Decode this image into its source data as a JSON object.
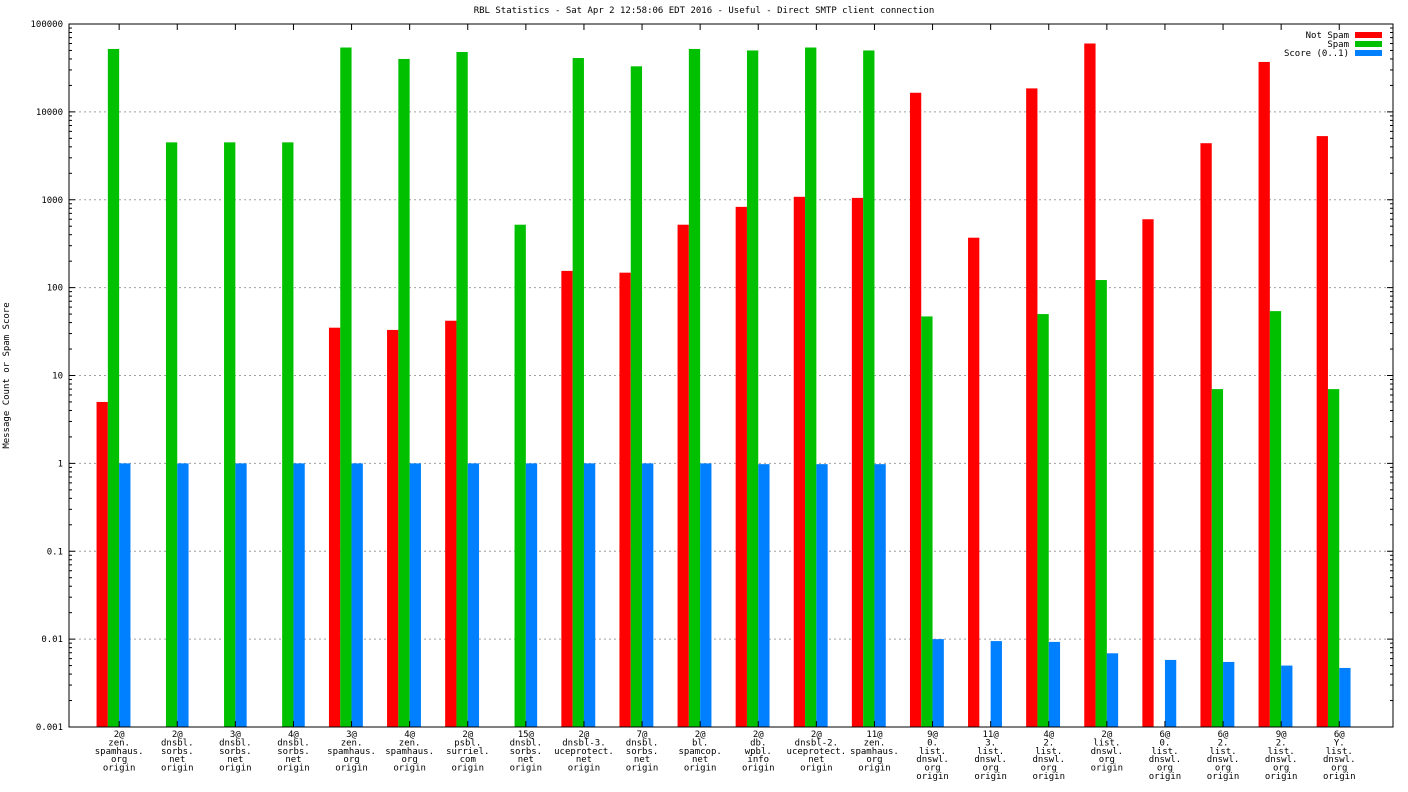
{
  "chart_data": {
    "type": "bar",
    "title": "RBL Statistics - Sat Apr  2 12:58:06 EDT 2016 - Useful - Direct SMTP client connection",
    "xlabel": "",
    "ylabel": "Message Count or Spam Score",
    "yscale": "log",
    "ylim": [
      0.001,
      100000
    ],
    "yticks": [
      "0.001",
      "0.01",
      "0.1",
      "1",
      "10",
      "100",
      "1000",
      "10000",
      "100000"
    ],
    "grid": true,
    "legend_position": "top-right",
    "categories": [
      [
        "2@",
        "zen.",
        "spamhaus.",
        "org",
        "origin"
      ],
      [
        "2@",
        "dnsbl.",
        "sorbs.",
        "net",
        "origin"
      ],
      [
        "3@",
        "dnsbl.",
        "sorbs.",
        "net",
        "origin"
      ],
      [
        "4@",
        "dnsbl.",
        "sorbs.",
        "net",
        "origin"
      ],
      [
        "3@",
        "zen.",
        "spamhaus.",
        "org",
        "origin"
      ],
      [
        "4@",
        "zen.",
        "spamhaus.",
        "org",
        "origin"
      ],
      [
        "2@",
        "psbl.",
        "surriel.",
        "com",
        "origin"
      ],
      [
        "15@",
        "dnsbl.",
        "sorbs.",
        "net",
        "origin"
      ],
      [
        "2@",
        "dnsbl-3.",
        "uceprotect.",
        "net",
        "origin"
      ],
      [
        "7@",
        "dnsbl.",
        "sorbs.",
        "net",
        "origin"
      ],
      [
        "2@",
        "bl.",
        "spamcop.",
        "net",
        "origin"
      ],
      [
        "2@",
        "db.",
        "wpbl.",
        "info",
        "origin"
      ],
      [
        "2@",
        "dnsbl-2.",
        "uceprotect.",
        "net",
        "origin"
      ],
      [
        "11@",
        "zen.",
        "spamhaus.",
        "org",
        "origin"
      ],
      [
        "9@",
        "0.",
        "list.",
        "dnswl.",
        "org",
        "origin"
      ],
      [
        "11@",
        "3.",
        "list.",
        "dnswl.",
        "org",
        "origin"
      ],
      [
        "4@",
        "2.",
        "list.",
        "dnswl.",
        "org",
        "origin"
      ],
      [
        "2@",
        "list.",
        "dnswl.",
        "org",
        "origin"
      ],
      [
        "6@",
        "0.",
        "list.",
        "dnswl.",
        "org",
        "origin"
      ],
      [
        "6@",
        "2.",
        "list.",
        "dnswl.",
        "org",
        "origin"
      ],
      [
        "9@",
        "2.",
        "list.",
        "dnswl.",
        "org",
        "origin"
      ],
      [
        "6@",
        "Y.",
        "list.",
        "dnswl.",
        "org",
        "origin"
      ]
    ],
    "series": [
      {
        "name": "Not Spam",
        "color": "#ff0000",
        "values": [
          5,
          0,
          0,
          0,
          35,
          33,
          42,
          0,
          155,
          148,
          520,
          830,
          1080,
          1050,
          16500,
          370,
          18500,
          60000,
          600,
          4400,
          37000,
          5300
        ]
      },
      {
        "name": "Spam",
        "color": "#00c000",
        "values": [
          52000,
          4500,
          4500,
          4500,
          54000,
          40000,
          48000,
          520,
          41000,
          33000,
          52000,
          50000,
          54000,
          50000,
          47,
          0,
          50,
          122,
          0,
          7,
          54,
          7
        ]
      },
      {
        "name": "Score (0..1)",
        "color": "#0080ff",
        "values": [
          1,
          1,
          1,
          1,
          1,
          1,
          1,
          1,
          1,
          1,
          1,
          0.98,
          0.98,
          0.98,
          0.01,
          0.0095,
          0.0093,
          0.0069,
          0.0058,
          0.0055,
          0.005,
          0.0047
        ]
      }
    ]
  }
}
